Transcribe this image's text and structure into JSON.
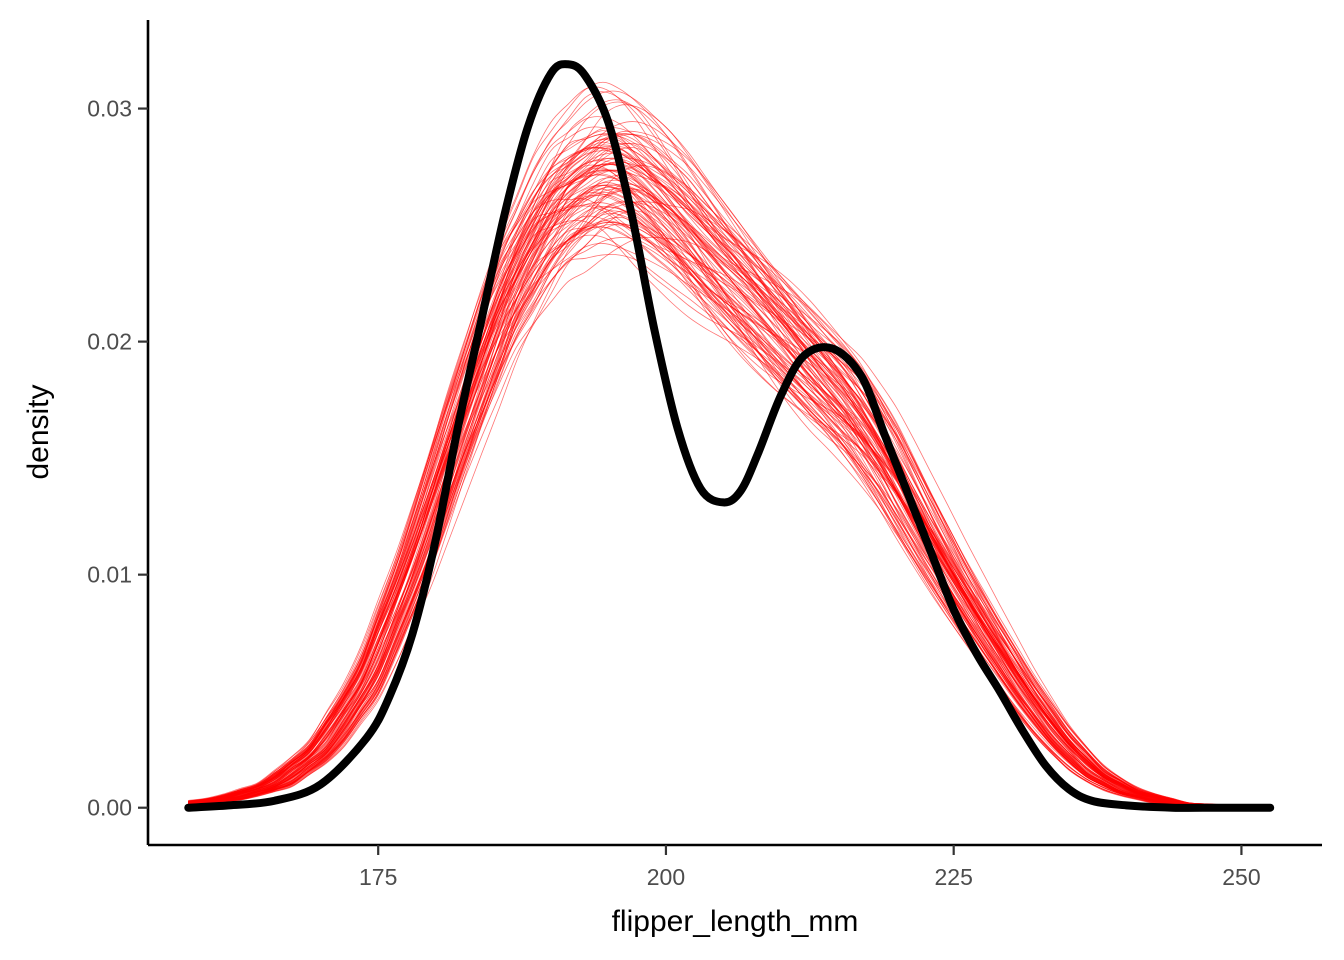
{
  "chart_data": {
    "type": "line",
    "xlabel": "flipper_length_mm",
    "ylabel": "density",
    "xlim": [
      155,
      257
    ],
    "ylim": [
      -0.0016,
      0.0338
    ],
    "x_ticks": [
      175,
      200,
      225,
      250
    ],
    "y_ticks": [
      0.0,
      0.01,
      0.02,
      0.03
    ],
    "x_tick_labels": [
      "175",
      "200",
      "225",
      "250"
    ],
    "y_tick_labels": [
      "0.00",
      "0.01",
      "0.02",
      "0.03"
    ],
    "grid": false,
    "legend": "none",
    "x_range": [
      158.5,
      252.5
    ],
    "colors": {
      "observed": "#000000",
      "simulated": "#ff0000"
    },
    "series": [
      {
        "color": "#000000",
        "x": [
          158.5,
          162,
          166,
          170,
          174,
          176,
          178,
          180,
          182,
          184,
          186,
          188,
          190,
          191.5,
          193,
          195,
          197,
          199,
          201,
          203,
          205,
          206.5,
          208,
          210,
          212,
          214.5,
          217,
          219,
          221,
          223,
          225,
          227,
          229,
          231,
          233,
          235,
          237,
          240,
          244,
          248,
          252.5
        ],
        "y": [
          0.0,
          0.0001,
          0.0003,
          0.001,
          0.003,
          0.0048,
          0.0075,
          0.0115,
          0.0165,
          0.021,
          0.0255,
          0.0292,
          0.0315,
          0.0319,
          0.0314,
          0.0294,
          0.0255,
          0.0205,
          0.0163,
          0.0137,
          0.0131,
          0.0136,
          0.0152,
          0.0177,
          0.0194,
          0.0197,
          0.0185,
          0.016,
          0.0135,
          0.011,
          0.0085,
          0.0066,
          0.005,
          0.0033,
          0.0018,
          0.0008,
          0.0003,
          0.0001,
          0.0,
          0.0,
          0.0
        ]
      },
      {
        "color": "#ff0000",
        "simulated_count": 100,
        "mean_x": [
          158.5,
          162,
          166,
          170,
          174,
          178,
          182,
          186,
          190,
          194,
          196,
          198,
          201,
          204,
          207,
          210,
          213,
          216,
          219,
          222,
          225,
          228,
          231,
          234,
          237,
          240,
          244,
          248,
          252.5
        ],
        "mean_y": [
          0.0002,
          0.0004,
          0.001,
          0.0025,
          0.0055,
          0.0105,
          0.0165,
          0.022,
          0.0257,
          0.0273,
          0.0274,
          0.0268,
          0.0255,
          0.0238,
          0.0222,
          0.0205,
          0.0188,
          0.0172,
          0.015,
          0.0123,
          0.0097,
          0.0073,
          0.005,
          0.003,
          0.0015,
          0.0007,
          0.0002,
          0.0001,
          0.0
        ]
      }
    ]
  }
}
